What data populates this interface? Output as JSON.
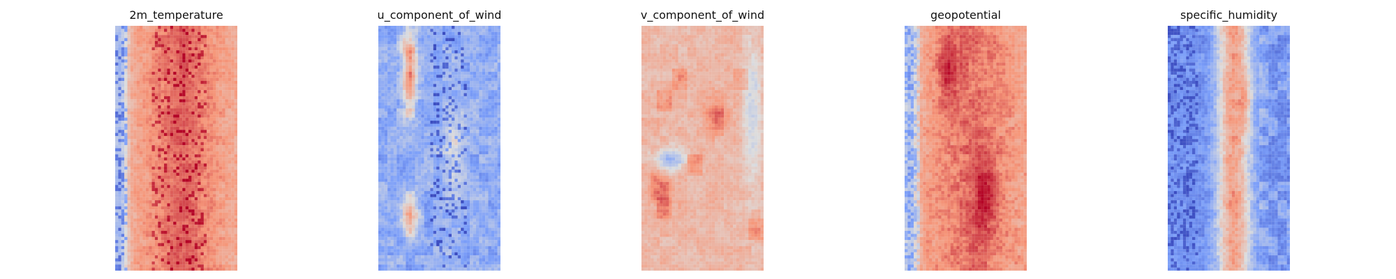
{
  "figure": {
    "background": "#ffffff",
    "colormap": "coolwarm"
  },
  "chart_data": [
    {
      "type": "heatmap",
      "title": "2m_temperature",
      "xlabel": "",
      "ylabel": "",
      "axes": "off",
      "grid": false,
      "colormap": "coolwarm",
      "rows": 80,
      "cols": 40,
      "pattern": "warm center band with cool western edge",
      "values": []
    },
    {
      "type": "heatmap",
      "title": "u_component_of_wind",
      "xlabel": "",
      "ylabel": "",
      "axes": "off",
      "grid": false,
      "colormap": "coolwarm",
      "rows": 80,
      "cols": 40,
      "pattern": "mostly cool with warm streak at left-center",
      "values": []
    },
    {
      "type": "heatmap",
      "title": "v_component_of_wind",
      "xlabel": "",
      "ylabel": "",
      "axes": "off",
      "grid": false,
      "colormap": "coolwarm",
      "rows": 80,
      "cols": 40,
      "pattern": "mostly light warm with scattered patches",
      "values": []
    },
    {
      "type": "heatmap",
      "title": "geopotential",
      "xlabel": "",
      "ylabel": "",
      "axes": "off",
      "grid": false,
      "colormap": "coolwarm",
      "rows": 80,
      "cols": 40,
      "pattern": "warm field with cool western edge",
      "values": []
    },
    {
      "type": "heatmap",
      "title": "specific_humidity",
      "xlabel": "",
      "ylabel": "",
      "axes": "off",
      "grid": false,
      "colormap": "coolwarm",
      "rows": 80,
      "cols": 40,
      "pattern": "cool field with warm central band",
      "values": []
    }
  ]
}
